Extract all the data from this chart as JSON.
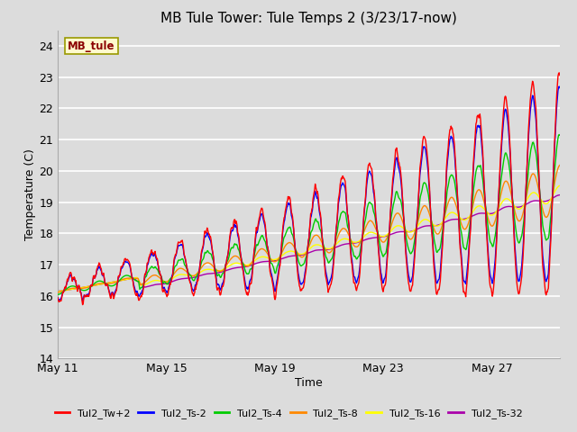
{
  "title": "MB Tule Tower: Tule Temps 2 (3/23/17-now)",
  "xlabel": "Time",
  "ylabel": "Temperature (C)",
  "ylim": [
    14.0,
    24.5
  ],
  "yticks": [
    14.0,
    15.0,
    16.0,
    17.0,
    18.0,
    19.0,
    20.0,
    21.0,
    22.0,
    23.0,
    24.0
  ],
  "bg_color": "#dcdcdc",
  "plot_bg_color": "#dcdcdc",
  "legend_label": "MB_tule",
  "series_colors": {
    "Tul2_Tw+2": "#ff0000",
    "Tul2_Ts-2": "#0000ff",
    "Tul2_Ts-4": "#00cc00",
    "Tul2_Ts-8": "#ff8800",
    "Tul2_Ts-16": "#ffff00",
    "Tul2_Ts-32": "#aa00aa"
  },
  "xtick_labels": [
    "May 11",
    "May 15",
    "May 19",
    "May 23",
    "May 27"
  ],
  "xtick_positions": [
    0,
    4,
    8,
    12,
    16
  ],
  "n_days": 18.5,
  "points_per_day": 48
}
